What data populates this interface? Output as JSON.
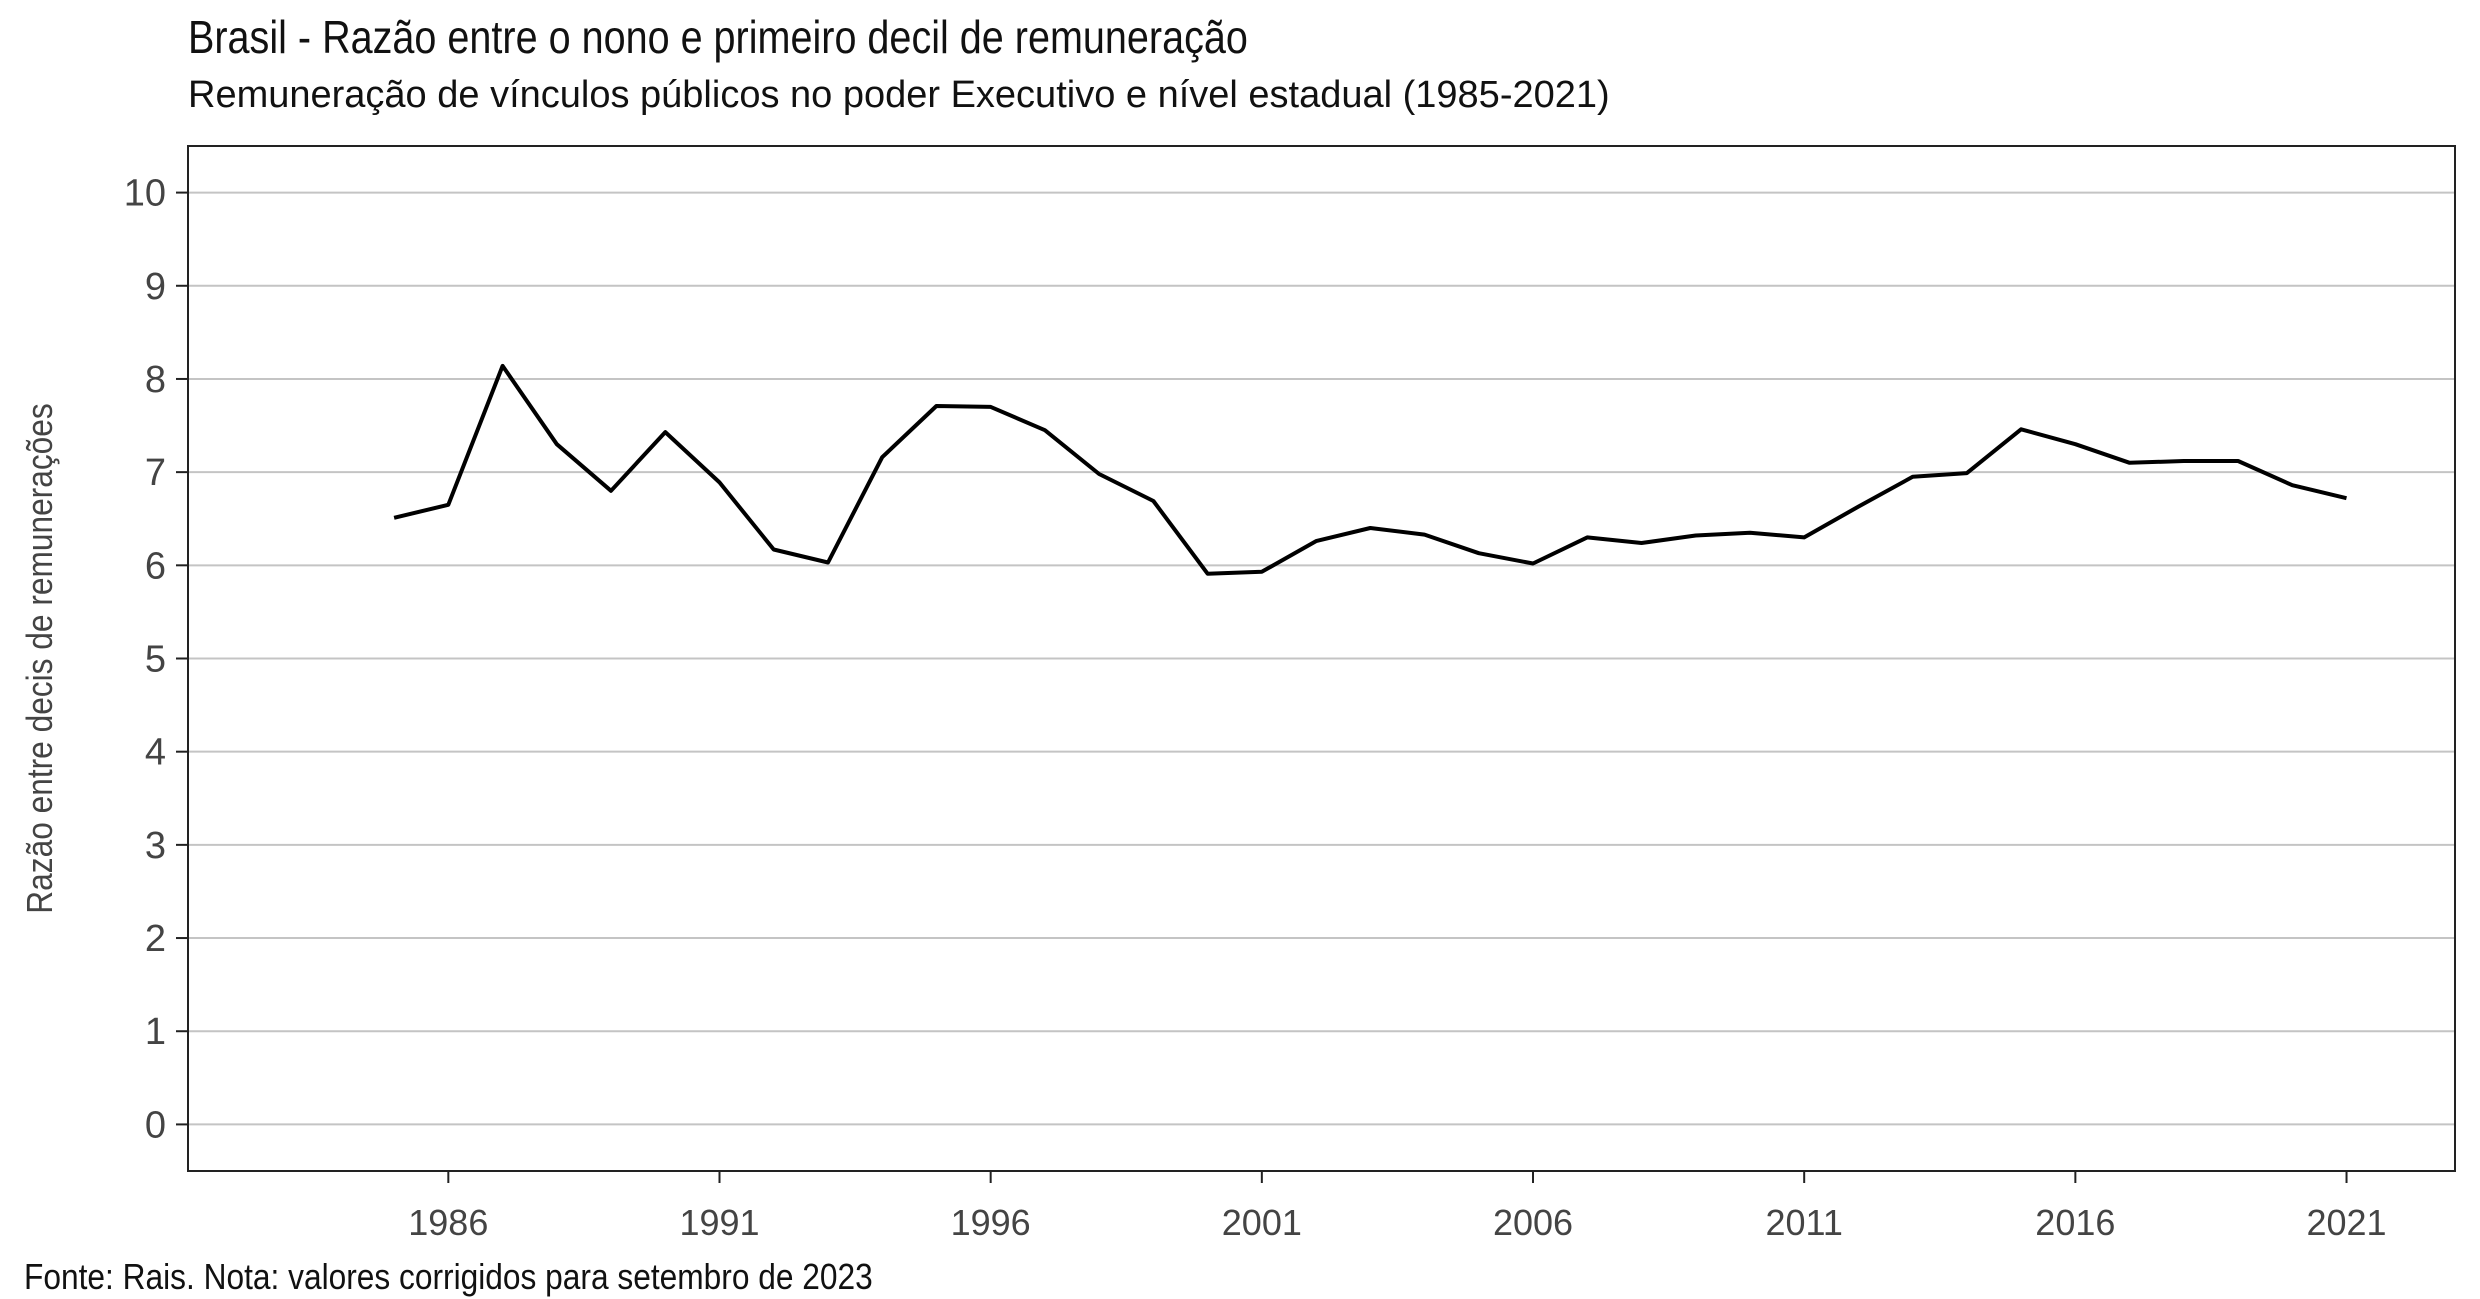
{
  "chart_data": {
    "type": "line",
    "title": "Brasil - Razão entre o nono e primeiro decil de remuneração",
    "subtitle": "Remuneração de vínculos públicos no poder Executivo e nível estadual (1985-2021)",
    "xlabel": "",
    "ylabel": "Razão entre decis de remunerações",
    "source": "Fonte: Rais. Nota: valores corrigidos para setembro de 2023",
    "xlim": [
      1981.2,
      2023.0
    ],
    "ylim": [
      -0.5,
      10.5
    ],
    "x_ticks": [
      1986,
      1991,
      1996,
      2001,
      2006,
      2011,
      2016,
      2021
    ],
    "y_ticks": [
      0,
      1,
      2,
      3,
      4,
      5,
      6,
      7,
      8,
      9,
      10
    ],
    "grid": "horizontal",
    "series": [
      {
        "color": "#000000",
        "x": [
          1985,
          1986,
          1987,
          1988,
          1989,
          1990,
          1991,
          1992,
          1993,
          1994,
          1995,
          1996,
          1997,
          1998,
          1999,
          2000,
          2001,
          2002,
          2003,
          2004,
          2005,
          2006,
          2007,
          2008,
          2009,
          2010,
          2011,
          2012,
          2013,
          2014,
          2015,
          2016,
          2017,
          2018,
          2019,
          2020,
          2021
        ],
        "values": [
          6.51,
          6.65,
          8.14,
          7.3,
          6.8,
          7.43,
          6.89,
          6.17,
          6.03,
          7.16,
          7.71,
          7.7,
          7.45,
          6.98,
          6.69,
          5.91,
          5.93,
          6.26,
          6.4,
          6.33,
          6.13,
          6.02,
          6.3,
          6.24,
          6.32,
          6.35,
          6.3,
          6.63,
          6.95,
          6.99,
          7.46,
          7.3,
          7.1,
          7.12,
          7.12,
          6.86,
          6.72
        ]
      }
    ]
  }
}
